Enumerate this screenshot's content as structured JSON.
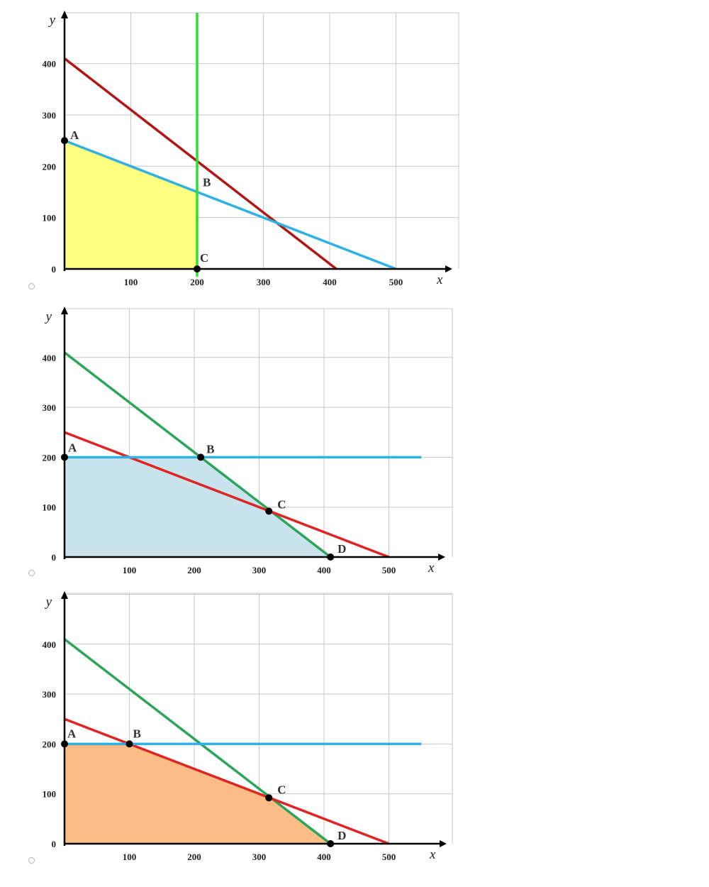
{
  "chart_data": [
    {
      "type": "line",
      "xlabel": "x",
      "ylabel": "y",
      "xlim": [
        0,
        590
      ],
      "ylim": [
        0,
        500
      ],
      "x_ticks": [
        100,
        200,
        300,
        400,
        500
      ],
      "y_ticks": [
        0,
        100,
        200,
        300,
        400
      ],
      "grid": true,
      "feasible_region": {
        "color": "#ffff80",
        "vertices": [
          [
            0,
            250
          ],
          [
            200,
            150
          ],
          [
            200,
            0
          ],
          [
            0,
            0
          ]
        ]
      },
      "series": [
        {
          "color": "#b01818",
          "points": [
            [
              0,
              410
            ],
            [
              410,
              0
            ]
          ]
        },
        {
          "color": "#2fb1e6",
          "points": [
            [
              0,
              250
            ],
            [
              500,
              0
            ]
          ]
        },
        {
          "color": "#2ee02e",
          "points": [
            [
              200,
              500
            ],
            [
              200,
              -15
            ]
          ]
        }
      ],
      "points": [
        {
          "label": "A",
          "x": 0,
          "y": 250,
          "dot": true
        },
        {
          "label": "B",
          "x": 200,
          "y": 150,
          "dot": false
        },
        {
          "label": "C",
          "x": 200,
          "y": 0,
          "dot": true
        }
      ]
    },
    {
      "type": "line",
      "xlabel": "x",
      "ylabel": "y",
      "xlim": [
        0,
        580
      ],
      "ylim": [
        0,
        500
      ],
      "x_ticks": [
        100,
        200,
        300,
        400,
        500
      ],
      "y_ticks": [
        0,
        100,
        200,
        300,
        400
      ],
      "grid": true,
      "feasible_region": {
        "color": "#c9e3ec",
        "vertices": [
          [
            0,
            200
          ],
          [
            210,
            200
          ],
          [
            315,
            92
          ],
          [
            410,
            0
          ],
          [
            0,
            0
          ]
        ]
      },
      "series": [
        {
          "color": "#2aa55a",
          "points": [
            [
              0,
              410
            ],
            [
              410,
              0
            ]
          ]
        },
        {
          "color": "#e02424",
          "points": [
            [
              0,
              250
            ],
            [
              500,
              0
            ]
          ]
        },
        {
          "color": "#2fb1e6",
          "points": [
            [
              0,
              200
            ],
            [
              550,
              200
            ]
          ]
        }
      ],
      "points": [
        {
          "label": "A",
          "x": 0,
          "y": 200,
          "dot": true
        },
        {
          "label": "B",
          "x": 210,
          "y": 200,
          "dot": true
        },
        {
          "label": "C",
          "x": 315,
          "y": 92,
          "dot": true
        },
        {
          "label": "D",
          "x": 410,
          "y": 0,
          "dot": true
        }
      ]
    },
    {
      "type": "line",
      "xlabel": "x",
      "ylabel": "y",
      "xlim": [
        0,
        580
      ],
      "ylim": [
        0,
        500
      ],
      "x_ticks": [
        100,
        200,
        300,
        400,
        500
      ],
      "y_ticks": [
        0,
        100,
        200,
        300,
        400
      ],
      "grid": true,
      "feasible_region": {
        "color": "#fbbc85",
        "vertices": [
          [
            0,
            200
          ],
          [
            100,
            200
          ],
          [
            315,
            92
          ],
          [
            410,
            0
          ],
          [
            0,
            0
          ]
        ]
      },
      "series": [
        {
          "color": "#2aa55a",
          "points": [
            [
              0,
              410
            ],
            [
              410,
              0
            ]
          ]
        },
        {
          "color": "#e02424",
          "points": [
            [
              0,
              250
            ],
            [
              500,
              0
            ]
          ]
        },
        {
          "color": "#2fb1e6",
          "points": [
            [
              0,
              200
            ],
            [
              550,
              200
            ]
          ]
        }
      ],
      "points": [
        {
          "label": "A",
          "x": 0,
          "y": 200,
          "dot": true
        },
        {
          "label": "B",
          "x": 100,
          "y": 200,
          "dot": true
        },
        {
          "label": "C",
          "x": 315,
          "y": 92,
          "dot": true
        },
        {
          "label": "D",
          "x": 410,
          "y": 0,
          "dot": true
        }
      ]
    }
  ]
}
